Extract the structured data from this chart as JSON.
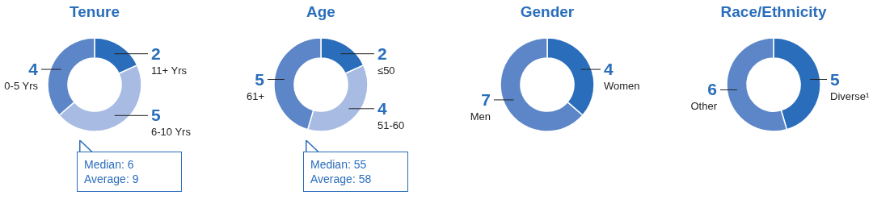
{
  "chart_data": [
    {
      "type": "donut",
      "title": "Tenure",
      "categories": [
        "11+ Yrs",
        "6-10 Yrs",
        "0-5 Yrs"
      ],
      "values": [
        2,
        5,
        4
      ],
      "colors": [
        "#2a6ebb",
        "#a8bbe3",
        "#5c86c8"
      ],
      "data_labels": true,
      "annotations": [
        "Median: 6",
        "Average: 9"
      ]
    },
    {
      "type": "donut",
      "title": "Age",
      "categories": [
        "≤50",
        "51-60",
        "61+"
      ],
      "values": [
        2,
        4,
        5
      ],
      "colors": [
        "#2a6ebb",
        "#a8bbe3",
        "#5c86c8"
      ],
      "data_labels": true,
      "annotations": [
        "Median: 55",
        "Average: 58"
      ]
    },
    {
      "type": "donut",
      "title": "Gender",
      "categories": [
        "Women",
        "Men"
      ],
      "values": [
        4,
        7
      ],
      "colors": [
        "#2a6ebb",
        "#5c86c8"
      ],
      "data_labels": true
    },
    {
      "type": "donut",
      "title": "Race/Ethnicity",
      "categories": [
        "Diverse¹",
        "Other"
      ],
      "values": [
        5,
        6
      ],
      "colors": [
        "#2a6ebb",
        "#5c86c8"
      ],
      "data_labels": true
    }
  ]
}
